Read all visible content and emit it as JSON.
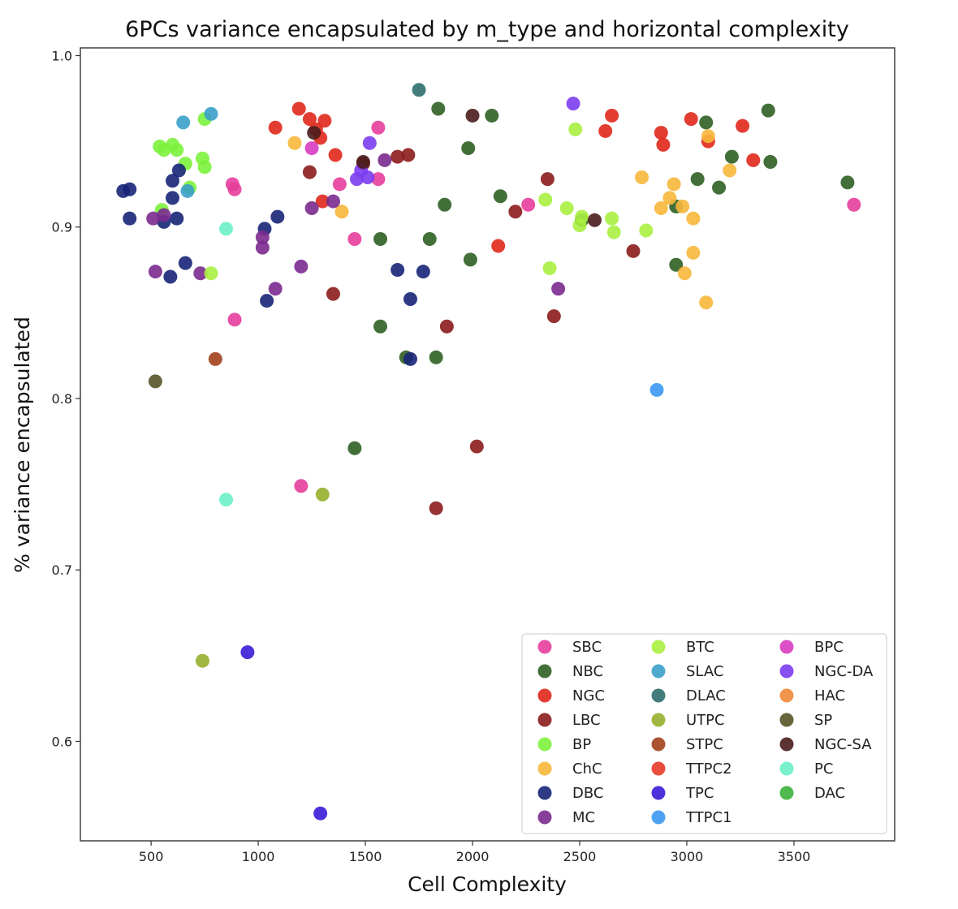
{
  "chart_data": {
    "type": "scatter",
    "title": "6PCs variance encapsulated by m_type and horizontal complexity",
    "xlabel": "Cell Complexity",
    "ylabel": "% variance encapsulated",
    "xlim": [
      170,
      3970
    ],
    "ylim": [
      0.542,
      1.0045
    ],
    "xticks": [
      500,
      1000,
      1500,
      2000,
      2500,
      3000,
      3500
    ],
    "yticks": [
      0.6,
      0.7,
      0.8,
      0.9,
      1.0
    ],
    "xtick_labels": [
      "500",
      "1000",
      "1500",
      "2000",
      "2500",
      "3000",
      "3500"
    ],
    "ytick_labels": [
      "0.6",
      "0.7",
      "0.8",
      "0.9",
      "1.0"
    ],
    "grid": false,
    "legend_position": "bottom-right",
    "series": [
      {
        "name": "SBC",
        "color": "#e63e9c",
        "points": [
          [
            880,
            0.925
          ],
          [
            890,
            0.922
          ],
          [
            890,
            0.846
          ],
          [
            1200,
            0.749
          ],
          [
            1380,
            0.925
          ],
          [
            1450,
            0.893
          ],
          [
            1560,
            0.958
          ],
          [
            1560,
            0.928
          ],
          [
            2260,
            0.913
          ],
          [
            3780,
            0.913
          ]
        ]
      },
      {
        "name": "NBC",
        "color": "#2f5f24",
        "points": [
          [
            1450,
            0.771
          ],
          [
            1570,
            0.893
          ],
          [
            1570,
            0.842
          ],
          [
            1690,
            0.824
          ],
          [
            1800,
            0.893
          ],
          [
            1830,
            0.824
          ],
          [
            1840,
            0.969
          ],
          [
            1870,
            0.913
          ],
          [
            1980,
            0.946
          ],
          [
            1990,
            0.881
          ],
          [
            2090,
            0.965
          ],
          [
            2130,
            0.918
          ],
          [
            2510,
            0.904
          ],
          [
            3090,
            0.961
          ],
          [
            3210,
            0.941
          ],
          [
            3050,
            0.928
          ],
          [
            3150,
            0.923
          ],
          [
            2950,
            0.912
          ],
          [
            2950,
            0.878
          ],
          [
            3380,
            0.968
          ],
          [
            3390,
            0.938
          ],
          [
            3750,
            0.926
          ]
        ]
      },
      {
        "name": "NGC",
        "color": "#e0281c",
        "points": [
          [
            1080,
            0.958
          ],
          [
            1190,
            0.969
          ],
          [
            1240,
            0.963
          ],
          [
            1270,
            0.957
          ],
          [
            1290,
            0.952
          ],
          [
            1310,
            0.962
          ],
          [
            1300,
            0.915
          ],
          [
            1360,
            0.942
          ],
          [
            2120,
            0.889
          ],
          [
            2620,
            0.956
          ],
          [
            2650,
            0.965
          ],
          [
            2880,
            0.955
          ],
          [
            2890,
            0.948
          ],
          [
            3020,
            0.963
          ],
          [
            3100,
            0.95
          ],
          [
            3260,
            0.959
          ],
          [
            3310,
            0.939
          ]
        ]
      },
      {
        "name": "LBC",
        "color": "#8b1c1c",
        "points": [
          [
            1240,
            0.932
          ],
          [
            1350,
            0.861
          ],
          [
            1490,
            0.937
          ],
          [
            1650,
            0.941
          ],
          [
            1700,
            0.942
          ],
          [
            1830,
            0.736
          ],
          [
            1880,
            0.842
          ],
          [
            2020,
            0.772
          ],
          [
            2200,
            0.909
          ],
          [
            2350,
            0.928
          ],
          [
            2380,
            0.848
          ],
          [
            2750,
            0.886
          ]
        ]
      },
      {
        "name": "BP",
        "color": "#7cf23c",
        "points": [
          [
            540,
            0.947
          ],
          [
            560,
            0.945
          ],
          [
            600,
            0.948
          ],
          [
            620,
            0.945
          ],
          [
            550,
            0.91
          ],
          [
            660,
            0.937
          ],
          [
            680,
            0.923
          ],
          [
            740,
            0.94
          ],
          [
            750,
            0.963
          ],
          [
            750,
            0.935
          ]
        ]
      },
      {
        "name": "ChC",
        "color": "#f7b73b",
        "points": [
          [
            1170,
            0.949
          ],
          [
            1390,
            0.909
          ],
          [
            2790,
            0.929
          ],
          [
            2880,
            0.911
          ],
          [
            2920,
            0.917
          ],
          [
            2940,
            0.925
          ],
          [
            2980,
            0.912
          ],
          [
            3030,
            0.905
          ],
          [
            3030,
            0.885
          ],
          [
            2990,
            0.873
          ],
          [
            3090,
            0.856
          ],
          [
            3100,
            0.953
          ],
          [
            3200,
            0.933
          ]
        ]
      },
      {
        "name": "DBC",
        "color": "#172577",
        "points": [
          [
            370,
            0.921
          ],
          [
            400,
            0.922
          ],
          [
            400,
            0.905
          ],
          [
            560,
            0.903
          ],
          [
            600,
            0.927
          ],
          [
            600,
            0.917
          ],
          [
            630,
            0.933
          ],
          [
            620,
            0.905
          ],
          [
            660,
            0.879
          ],
          [
            590,
            0.871
          ],
          [
            1030,
            0.899
          ],
          [
            1040,
            0.857
          ],
          [
            1090,
            0.906
          ],
          [
            1650,
            0.875
          ],
          [
            1710,
            0.858
          ],
          [
            1710,
            0.823
          ],
          [
            1770,
            0.874
          ]
        ]
      },
      {
        "name": "MC",
        "color": "#7a2a8f",
        "points": [
          [
            510,
            0.905
          ],
          [
            560,
            0.907
          ],
          [
            520,
            0.874
          ],
          [
            730,
            0.873
          ],
          [
            1020,
            0.894
          ],
          [
            1020,
            0.888
          ],
          [
            1080,
            0.864
          ],
          [
            1200,
            0.877
          ],
          [
            1250,
            0.911
          ],
          [
            1350,
            0.915
          ],
          [
            1590,
            0.939
          ],
          [
            2400,
            0.864
          ]
        ]
      },
      {
        "name": "BTC",
        "color": "#a8f040",
        "points": [
          [
            780,
            0.873
          ],
          [
            2340,
            0.916
          ],
          [
            2360,
            0.876
          ],
          [
            2440,
            0.911
          ],
          [
            2480,
            0.957
          ],
          [
            2500,
            0.901
          ],
          [
            2510,
            0.906
          ],
          [
            2650,
            0.905
          ],
          [
            2660,
            0.897
          ],
          [
            2810,
            0.898
          ]
        ]
      },
      {
        "name": "SLAC",
        "color": "#3aa0c8",
        "points": [
          [
            650,
            0.961
          ],
          [
            670,
            0.921
          ],
          [
            780,
            0.966
          ]
        ]
      },
      {
        "name": "DLAC",
        "color": "#2f6e6e",
        "points": [
          [
            1750,
            0.98
          ]
        ]
      },
      {
        "name": "UTPC",
        "color": "#96b02c",
        "points": [
          [
            1300,
            0.744
          ],
          [
            740,
            0.647
          ]
        ]
      },
      {
        "name": "STPC",
        "color": "#a3401c",
        "points": [
          [
            800,
            0.823
          ]
        ]
      },
      {
        "name": "TTPC2",
        "color": "#e83a28",
        "points": []
      },
      {
        "name": "TPC",
        "color": "#3a1cd8",
        "points": [
          [
            950,
            0.652
          ],
          [
            1290,
            0.558
          ]
        ]
      },
      {
        "name": "TTPC1",
        "color": "#3b98f2",
        "points": [
          [
            2860,
            0.805
          ]
        ]
      },
      {
        "name": "BPC",
        "color": "#d83cc0",
        "points": [
          [
            1250,
            0.946
          ]
        ]
      },
      {
        "name": "NGC-DA",
        "color": "#7b3cf0",
        "points": [
          [
            1520,
            0.949
          ],
          [
            1510,
            0.929
          ],
          [
            1460,
            0.928
          ],
          [
            1480,
            0.933
          ],
          [
            2470,
            0.972
          ]
        ]
      },
      {
        "name": "HAC",
        "color": "#f08a3a",
        "points": []
      },
      {
        "name": "SP",
        "color": "#565426",
        "points": [
          [
            520,
            0.81
          ]
        ]
      },
      {
        "name": "NGC-SA",
        "color": "#4a1c1c",
        "points": [
          [
            1260,
            0.955
          ],
          [
            1490,
            0.938
          ],
          [
            2000,
            0.965
          ],
          [
            2570,
            0.904
          ]
        ]
      },
      {
        "name": "PC",
        "color": "#6cf0c8",
        "points": [
          [
            850,
            0.899
          ],
          [
            850,
            0.741
          ]
        ]
      },
      {
        "name": "DAC",
        "color": "#3cb03c",
        "points": []
      }
    ]
  }
}
